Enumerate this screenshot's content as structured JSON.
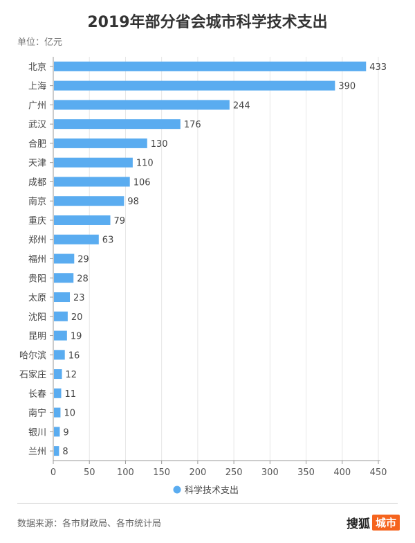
{
  "chart_data": {
    "type": "bar",
    "orientation": "horizontal",
    "title": "2019年部分省会城市科学技术支出",
    "unit_label": "单位：亿元",
    "categories": [
      "北京",
      "上海",
      "广州",
      "武汉",
      "合肥",
      "天津",
      "成都",
      "南京",
      "重庆",
      "郑州",
      "福州",
      "贵阳",
      "太原",
      "沈阳",
      "昆明",
      "哈尔滨",
      "石家庄",
      "长春",
      "南宁",
      "银川",
      "兰州"
    ],
    "series": [
      {
        "name": "科学技术支出",
        "values": [
          433,
          390,
          244,
          176,
          130,
          110,
          106,
          98,
          79,
          63,
          29,
          28,
          23,
          20,
          19,
          16,
          12,
          11,
          10,
          9,
          8
        ]
      }
    ],
    "xlim": [
      0,
      450
    ],
    "xticks": [
      0,
      50,
      100,
      150,
      200,
      250,
      300,
      350,
      400,
      450
    ],
    "grid": true,
    "legend": "bottom-center",
    "bar_color": "#5aacf0"
  },
  "footer": {
    "source": "数据来源：各市财政局、各市统计局",
    "logo_text": "搜狐",
    "logo_badge": "城市"
  }
}
